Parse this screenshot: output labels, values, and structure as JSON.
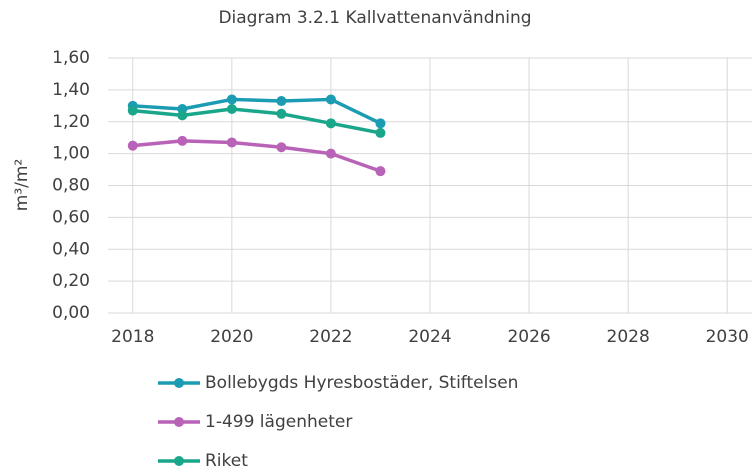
{
  "chart_data": {
    "type": "line",
    "title": "Diagram 3.2.1 Kallvattenanvändning",
    "y_label": "m³/m²",
    "x": [
      2018,
      2019,
      2020,
      2021,
      2022,
      2023
    ],
    "series": [
      {
        "name": "Bollebygds Hyresbostäder, Stiftelsen",
        "color": "#1b9cb3",
        "values": [
          1.3,
          1.28,
          1.34,
          1.33,
          1.34,
          1.19
        ]
      },
      {
        "name": "1-499 lägenheter",
        "color": "#b862b8",
        "values": [
          1.05,
          1.08,
          1.07,
          1.04,
          1.0,
          0.89
        ]
      },
      {
        "name": "Riket",
        "color": "#1aa68b",
        "values": [
          1.27,
          1.24,
          1.28,
          1.25,
          1.19,
          1.13
        ]
      }
    ],
    "xlim": [
      2017.5,
      2030.5
    ],
    "xticks": [
      2018,
      2020,
      2022,
      2024,
      2026,
      2028,
      2030
    ],
    "ylim": [
      0,
      1.6
    ],
    "yticks": [
      {
        "value": 0,
        "label": "0,00"
      },
      {
        "value": 0.2,
        "label": "0,20"
      },
      {
        "value": 0.4,
        "label": "0,40"
      },
      {
        "value": 0.6,
        "label": "0,60"
      },
      {
        "value": 0.8,
        "label": "0,80"
      },
      {
        "value": 1.0,
        "label": "1,00"
      },
      {
        "value": 1.2,
        "label": "1,20"
      },
      {
        "value": 1.4,
        "label": "1,40"
      },
      {
        "value": 1.6,
        "label": "1,60"
      }
    ],
    "grid": true,
    "legend": "bottom"
  }
}
